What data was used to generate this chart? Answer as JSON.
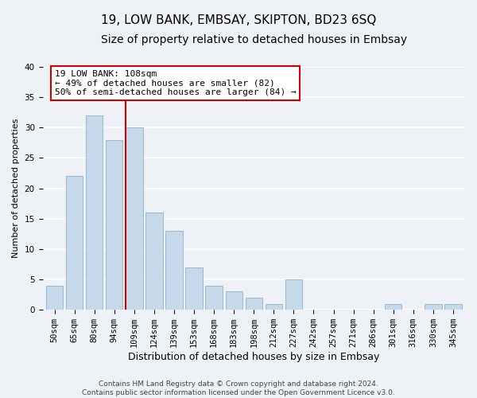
{
  "title": "19, LOW BANK, EMBSAY, SKIPTON, BD23 6SQ",
  "subtitle": "Size of property relative to detached houses in Embsay",
  "xlabel": "Distribution of detached houses by size in Embsay",
  "ylabel": "Number of detached properties",
  "bar_labels": [
    "50sqm",
    "65sqm",
    "80sqm",
    "94sqm",
    "109sqm",
    "124sqm",
    "139sqm",
    "153sqm",
    "168sqm",
    "183sqm",
    "198sqm",
    "212sqm",
    "227sqm",
    "242sqm",
    "257sqm",
    "271sqm",
    "286sqm",
    "301sqm",
    "316sqm",
    "330sqm",
    "345sqm"
  ],
  "bar_heights": [
    4,
    22,
    32,
    28,
    30,
    16,
    13,
    7,
    4,
    3,
    2,
    1,
    5,
    0,
    0,
    0,
    0,
    1,
    0,
    1,
    1
  ],
  "bar_color": "#c6d9ea",
  "bar_edge_color": "#9ab8d0",
  "vline_x": 4,
  "vline_color": "#cc0000",
  "ylim": [
    0,
    40
  ],
  "yticks": [
    0,
    5,
    10,
    15,
    20,
    25,
    30,
    35,
    40
  ],
  "annotation_title": "19 LOW BANK: 108sqm",
  "annotation_line1": "← 49% of detached houses are smaller (82)",
  "annotation_line2": "50% of semi-detached houses are larger (84) →",
  "annotation_box_color": "white",
  "annotation_box_edge": "#cc0000",
  "footer_line1": "Contains HM Land Registry data © Crown copyright and database right 2024.",
  "footer_line2": "Contains public sector information licensed under the Open Government Licence v3.0.",
  "background_color": "#eef2f7",
  "grid_color": "white",
  "title_fontsize": 11,
  "subtitle_fontsize": 10,
  "xlabel_fontsize": 9,
  "ylabel_fontsize": 8,
  "tick_fontsize": 7.5,
  "annotation_fontsize": 8,
  "footer_fontsize": 6.5
}
